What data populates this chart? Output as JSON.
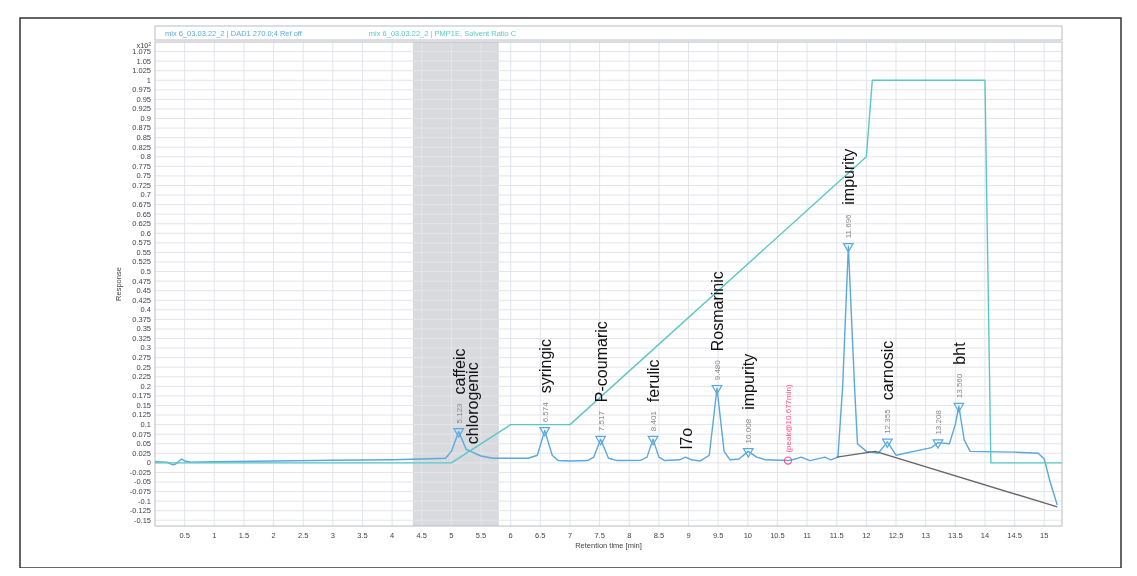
{
  "chart_data": {
    "type": "line",
    "xlabel": "Retention time [min]",
    "ylabel": "Response",
    "annotations": [
      "x10²",
      {
        "text": "5.123",
        "x": 5.123,
        "y": 0.082
      },
      {
        "text": "6.574",
        "x": 6.574,
        "y": 0.085
      },
      {
        "text": "7.517",
        "x": 7.517,
        "y": 0.062
      },
      {
        "text": "8.401",
        "x": 8.401,
        "y": 0.062
      },
      {
        "text": "9.480",
        "x": 9.48,
        "y": 0.195
      },
      {
        "text": "10.008",
        "x": 10.008,
        "y": 0.03
      },
      {
        "text": "(peak@10.677min)",
        "x": 10.677,
        "y": 0.006
      },
      {
        "text": "11.696",
        "x": 11.696,
        "y": 0.566
      },
      {
        "text": "12.355",
        "x": 12.355,
        "y": 0.055
      },
      {
        "text": "13.208",
        "x": 13.208,
        "y": 0.053
      },
      {
        "text": "13.560",
        "x": 13.56,
        "y": 0.148
      },
      {
        "text": "caffeic",
        "x": 5.123,
        "y": 0.082
      },
      {
        "text": "chlorogenic",
        "x": 5.35,
        "y": 0.028
      },
      {
        "text": "syringic",
        "x": 6.574,
        "y": 0.085
      },
      {
        "text": "P-coumaric",
        "x": 7.517,
        "y": 0.062
      },
      {
        "text": "ferulic",
        "x": 8.401,
        "y": 0.062
      },
      {
        "text": "l7o",
        "x": 8.95,
        "y": 0.015
      },
      {
        "text": "Rosmarinic",
        "x": 9.48,
        "y": 0.195
      },
      {
        "text": "impurity",
        "x": 10.008,
        "y": 0.03
      },
      {
        "text": "impurity",
        "x": 11.696,
        "y": 0.566
      },
      {
        "text": "carnosic",
        "x": 12.355,
        "y": 0.055
      },
      {
        "text": "bht",
        "x": 13.56,
        "y": 0.148
      }
    ],
    "xlim": [
      0,
      15.3
    ],
    "ylim": [
      -0.165,
      1.1
    ],
    "xticks": [
      0.5,
      1,
      1.5,
      2,
      2.5,
      3,
      3.5,
      4,
      4.5,
      5,
      5.5,
      6,
      6.5,
      7,
      7.5,
      8,
      8.5,
      9,
      9.5,
      10,
      10.5,
      11,
      11.5,
      12,
      12.5,
      13,
      13.5,
      14,
      14.5,
      15
    ],
    "yticks": [
      -0.15,
      -0.125,
      -0.1,
      -0.075,
      -0.05,
      -0.025,
      0,
      0.025,
      0.05,
      0.075,
      0.1,
      0.125,
      0.15,
      0.175,
      0.2,
      0.225,
      0.25,
      0.275,
      0.3,
      0.325,
      0.35,
      0.375,
      0.4,
      0.425,
      0.45,
      0.475,
      0.5,
      0.525,
      0.55,
      0.575,
      0.6,
      0.625,
      0.65,
      0.675,
      0.7,
      0.725,
      0.75,
      0.775,
      0.8,
      0.825,
      0.85,
      0.875,
      0.9,
      0.925,
      0.95,
      0.975,
      1,
      1.025,
      1.05,
      1.075
    ],
    "grid": true,
    "legend": "top",
    "line_style": "solid",
    "bands": [
      {
        "axis": "x",
        "from": 4.35,
        "to": 5.8,
        "color": "#d9dadd"
      }
    ],
    "series": [
      {
        "name": "mix 6_03.03.22_2 | DAD1 270.0;4 Ref off",
        "color": "#5aa8e0",
        "x": [
          0,
          0.2,
          0.3,
          0.35,
          0.45,
          0.5,
          0.6,
          1,
          2,
          3,
          4,
          4.5,
          4.9,
          5,
          5.123,
          5.25,
          5.35,
          5.5,
          5.7,
          6,
          6.3,
          6.45,
          6.574,
          6.7,
          6.8,
          7,
          7.3,
          7.4,
          7.517,
          7.65,
          7.8,
          8.2,
          8.3,
          8.401,
          8.5,
          8.6,
          8.85,
          8.95,
          9.05,
          9.2,
          9.35,
          9.48,
          9.6,
          9.7,
          9.85,
          10.008,
          10.15,
          10.3,
          10.677,
          10.8,
          10.9,
          11.05,
          11.3,
          11.4,
          11.52,
          11.6,
          11.696,
          11.8,
          11.85,
          12,
          12.2,
          12.355,
          12.5,
          12.8,
          13.1,
          13.208,
          13.4,
          13.5,
          13.56,
          13.65,
          13.75,
          14.5,
          14.9,
          15,
          15.1,
          15.22
        ],
        "values": [
          0.003,
          0.002,
          -0.005,
          -0.003,
          0.01,
          0.005,
          0.002,
          0.003,
          0.005,
          0.007,
          0.008,
          0.01,
          0.012,
          0.03,
          0.082,
          0.035,
          0.028,
          0.018,
          0.012,
          0.012,
          0.012,
          0.02,
          0.085,
          0.02,
          0.006,
          0.005,
          0.006,
          0.015,
          0.062,
          0.012,
          0.006,
          0.007,
          0.015,
          0.062,
          0.015,
          0.006,
          0.008,
          0.015,
          0.008,
          0.005,
          0.02,
          0.195,
          0.03,
          0.008,
          0.01,
          0.03,
          0.015,
          0.008,
          0.006,
          0.01,
          0.015,
          0.006,
          0.015,
          0.008,
          0.015,
          0.2,
          0.566,
          0.2,
          0.05,
          0.03,
          0.025,
          0.055,
          0.02,
          0.03,
          0.04,
          0.053,
          0.05,
          0.1,
          0.148,
          0.06,
          0.03,
          0.028,
          0.025,
          0.01,
          -0.05,
          -0.11
        ]
      },
      {
        "name": "mix 6_03.03.22_2 | PMP1E, Solvent Ratio C",
        "color": "#5cc6c6",
        "x": [
          0,
          5,
          6,
          7,
          12,
          12.1,
          14,
          14.1,
          15.3
        ],
        "values": [
          0,
          0,
          0.1,
          0.1,
          0.8,
          1,
          1,
          0,
          0
        ]
      },
      {
        "color": "#666666",
        "x": [
          11.5,
          12.15,
          15.22
        ],
        "values": [
          0.015,
          0.03,
          -0.115
        ]
      },
      {
        "type": "scatter",
        "marker": "triangle",
        "color": "#5aa8e0",
        "x": [
          5.123,
          6.574,
          7.517,
          8.401,
          9.48,
          10.008,
          11.696,
          12.355,
          13.208,
          13.56
        ],
        "values": [
          0.082,
          0.085,
          0.062,
          0.062,
          0.195,
          0.03,
          0.566,
          0.055,
          0.053,
          0.148
        ]
      },
      {
        "type": "scatter",
        "marker": "circle",
        "color": "#ff4d88",
        "x": [
          10.677
        ],
        "values": [
          0.006
        ]
      }
    ]
  }
}
